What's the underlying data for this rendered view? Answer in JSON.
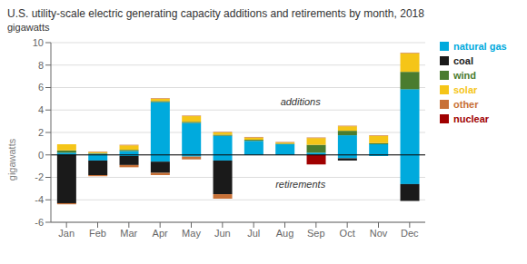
{
  "chart_data": {
    "type": "bar",
    "title": "U.S. utility-scale electric generating capacity additions and retirements by month, 2018",
    "subtitle": "gigawatts",
    "ylabel": "gigawatts",
    "categories": [
      "Jan",
      "Feb",
      "Mar",
      "Apr",
      "May",
      "Jun",
      "Jul",
      "Aug",
      "Sep",
      "Oct",
      "Nov",
      "Dec"
    ],
    "stacked": true,
    "grid": true,
    "legend": "right",
    "ylim": [
      -6,
      10
    ],
    "yticks": [
      -6,
      -4,
      -2,
      0,
      2,
      4,
      6,
      8,
      10
    ],
    "annotations": [
      "additions",
      "retirements"
    ],
    "series": [
      {
        "name": "natural gas",
        "color": "#00aadd",
        "values": [
          0.2,
          0.1,
          0.35,
          4.7,
          2.85,
          1.7,
          1.25,
          0.95,
          0.2,
          1.75,
          0.95,
          5.85
        ]
      },
      {
        "name": "coal",
        "color": "#1a1a1a",
        "values": [
          0.0,
          0.0,
          0.0,
          0.0,
          0.0,
          0.0,
          0.0,
          0.0,
          0.0,
          0.0,
          0.0,
          0.0
        ]
      },
      {
        "name": "wind",
        "color": "#4a7c2f",
        "values": [
          0.2,
          0.05,
          0.1,
          0.1,
          0.1,
          0.1,
          0.1,
          0.05,
          0.7,
          0.4,
          0.1,
          1.55
        ]
      },
      {
        "name": "solar",
        "color": "#f5c518",
        "values": [
          0.55,
          0.1,
          0.4,
          0.2,
          0.5,
          0.2,
          0.2,
          0.1,
          0.6,
          0.4,
          0.65,
          1.65
        ]
      },
      {
        "name": "other",
        "color": "#c87137",
        "values": [
          0.0,
          0.05,
          0.05,
          0.05,
          0.05,
          0.05,
          0.05,
          0.05,
          0.05,
          0.05,
          0.05,
          0.05
        ]
      },
      {
        "name": "natural gas",
        "color": "#00aadd",
        "values": [
          0.0,
          -0.5,
          -0.1,
          -0.6,
          -0.15,
          -0.5,
          0.0,
          0.0,
          0.0,
          -0.3,
          -0.1,
          -2.6
        ]
      },
      {
        "name": "nuclear",
        "color": "#a00000",
        "values": [
          0.0,
          0.0,
          0.0,
          0.0,
          0.0,
          0.0,
          0.0,
          0.0,
          -0.85,
          0.0,
          0.0,
          0.0
        ]
      },
      {
        "name": "coal",
        "color": "#1a1a1a",
        "values": [
          -4.3,
          -1.3,
          -0.8,
          -1.0,
          0.0,
          -3.0,
          0.0,
          0.0,
          0.0,
          -0.2,
          0.0,
          -1.5
        ]
      },
      {
        "name": "other",
        "color": "#c87137",
        "values": [
          -0.1,
          -0.1,
          -0.2,
          -0.2,
          -0.25,
          -0.4,
          0.0,
          0.0,
          0.0,
          0.0,
          0.0,
          0.0
        ]
      }
    ]
  }
}
